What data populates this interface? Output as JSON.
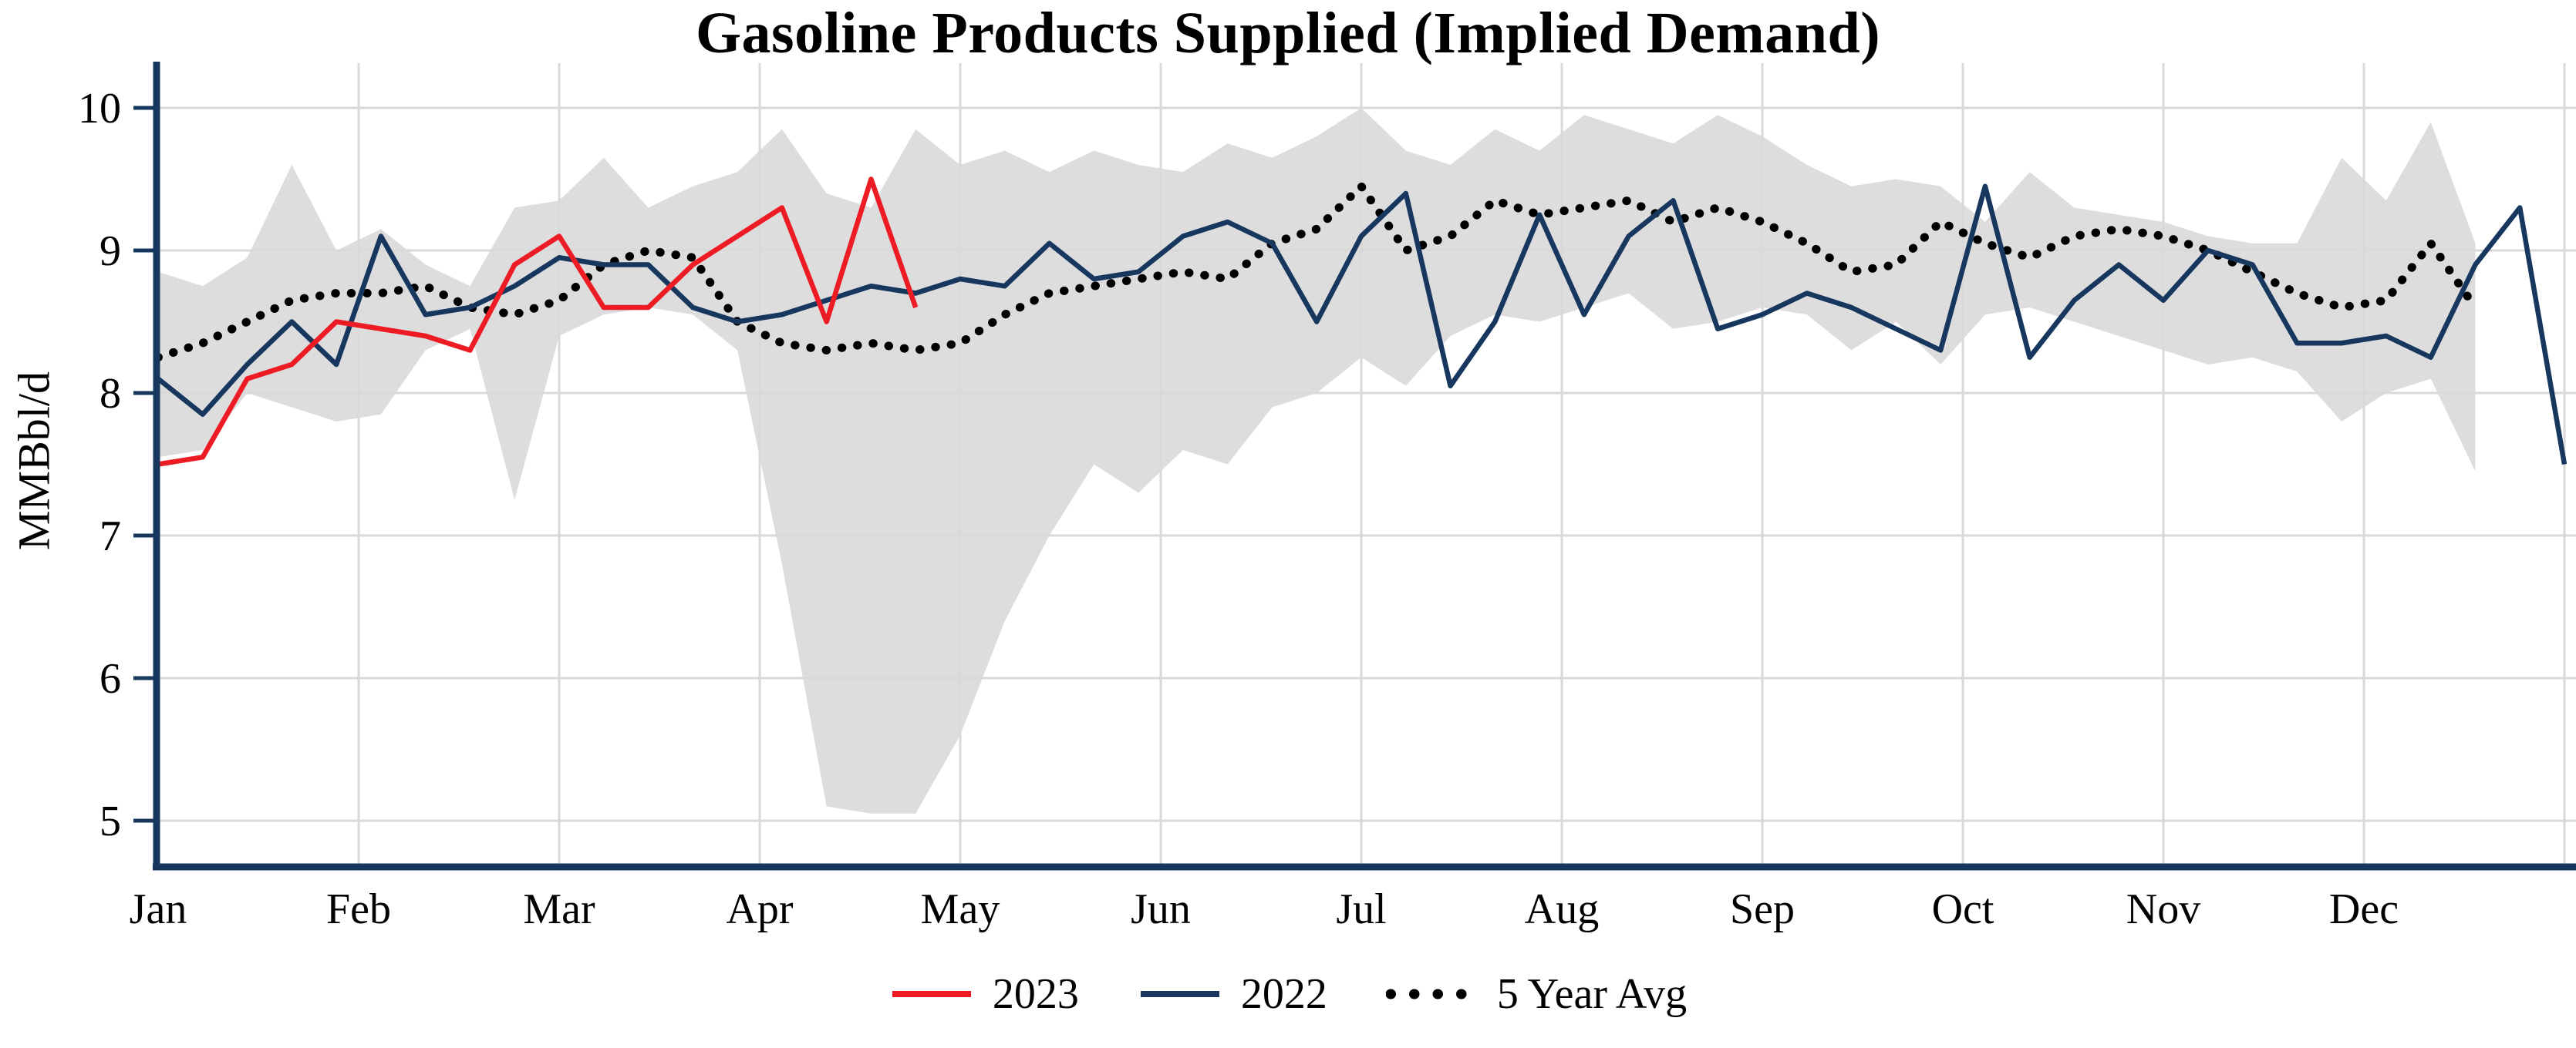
{
  "title": "Gasoline Products Supplied (Implied Demand)",
  "chart_data": {
    "type": "line",
    "title": "Gasoline Products Supplied (Implied Demand)",
    "xlabel": "",
    "ylabel": "MMBbl/d",
    "ylim": [
      5,
      10
    ],
    "yticks": [
      5,
      6,
      7,
      8,
      9,
      10
    ],
    "months": [
      "Jan",
      "Feb",
      "Mar",
      "Apr",
      "May",
      "Jun",
      "Jul",
      "Aug",
      "Sep",
      "Oct",
      "Nov",
      "Dec"
    ],
    "grid": true,
    "grid_color": "#d9d9d9",
    "axis_color": "#17375e",
    "background": "#ffffff",
    "legend_position": "bottom",
    "band": {
      "color": "#d9d9d9",
      "min": [
        7.55,
        7.6,
        8.0,
        7.9,
        7.8,
        7.85,
        8.3,
        8.45,
        7.25,
        8.4,
        8.55,
        8.6,
        8.55,
        8.3,
        6.8,
        5.1,
        5.05,
        5.05,
        5.6,
        6.4,
        7.0,
        7.5,
        7.3,
        7.6,
        7.5,
        7.9,
        8.0,
        8.25,
        8.05,
        8.4,
        8.55,
        8.5,
        8.6,
        8.7,
        8.45,
        8.5,
        8.6,
        8.55,
        8.3,
        8.5,
        8.2,
        8.55,
        8.6,
        8.5,
        8.4,
        8.3,
        8.2,
        8.25,
        8.15,
        7.8,
        8.0,
        8.1,
        7.45
      ],
      "max": [
        8.85,
        8.75,
        8.95,
        9.6,
        9.0,
        9.15,
        8.9,
        8.75,
        9.3,
        9.35,
        9.65,
        9.3,
        9.45,
        9.55,
        9.85,
        9.4,
        9.3,
        9.85,
        9.6,
        9.7,
        9.55,
        9.7,
        9.6,
        9.55,
        9.75,
        9.65,
        9.8,
        10.0,
        9.7,
        9.6,
        9.85,
        9.7,
        9.95,
        9.85,
        9.75,
        9.95,
        9.8,
        9.6,
        9.45,
        9.5,
        9.45,
        9.2,
        9.55,
        9.3,
        9.25,
        9.2,
        9.1,
        9.05,
        9.05,
        9.65,
        9.35,
        9.9,
        9.05
      ]
    },
    "series": [
      {
        "name": "2023",
        "color": "#ed1c24",
        "style": "solid",
        "values": [
          7.5,
          7.55,
          8.1,
          8.2,
          8.5,
          8.45,
          8.4,
          8.3,
          8.9,
          9.1,
          8.6,
          8.6,
          8.9,
          9.1,
          9.3,
          8.5,
          9.5,
          8.6
        ]
      },
      {
        "name": "2022",
        "color": "#17375e",
        "style": "solid",
        "values": [
          8.1,
          7.85,
          8.2,
          8.5,
          8.2,
          9.1,
          8.55,
          8.6,
          8.75,
          8.95,
          8.9,
          8.9,
          8.6,
          8.5,
          8.55,
          8.65,
          8.75,
          8.7,
          8.8,
          8.75,
          9.05,
          8.8,
          8.85,
          9.1,
          9.2,
          9.05,
          8.5,
          9.1,
          9.4,
          8.05,
          8.5,
          9.25,
          8.55,
          9.1,
          9.35,
          8.45,
          8.55,
          8.7,
          8.6,
          8.45,
          8.3,
          9.45,
          8.25,
          8.65,
          8.9,
          8.65,
          9.0,
          8.9,
          8.35,
          8.35,
          8.4,
          8.25,
          8.9
        ]
      },
      {
        "name": "5 Year Avg",
        "color": "#000000",
        "style": "dotted",
        "values": [
          8.25,
          8.35,
          8.5,
          8.65,
          8.7,
          8.7,
          8.75,
          8.6,
          8.55,
          8.65,
          8.9,
          9.0,
          8.95,
          8.5,
          8.35,
          8.3,
          8.35,
          8.3,
          8.35,
          8.55,
          8.7,
          8.75,
          8.8,
          8.85,
          8.8,
          9.05,
          9.15,
          9.45,
          9.0,
          9.1,
          9.35,
          9.25,
          9.3,
          9.35,
          9.2,
          9.3,
          9.2,
          9.05,
          8.85,
          8.9,
          9.2,
          9.05,
          8.95,
          9.1,
          9.15,
          9.1,
          9.0,
          8.85,
          8.7,
          8.6,
          8.65,
          9.05,
          8.6
        ]
      }
    ],
    "series_2022_tail": [
      9.3,
      7.5
    ]
  }
}
